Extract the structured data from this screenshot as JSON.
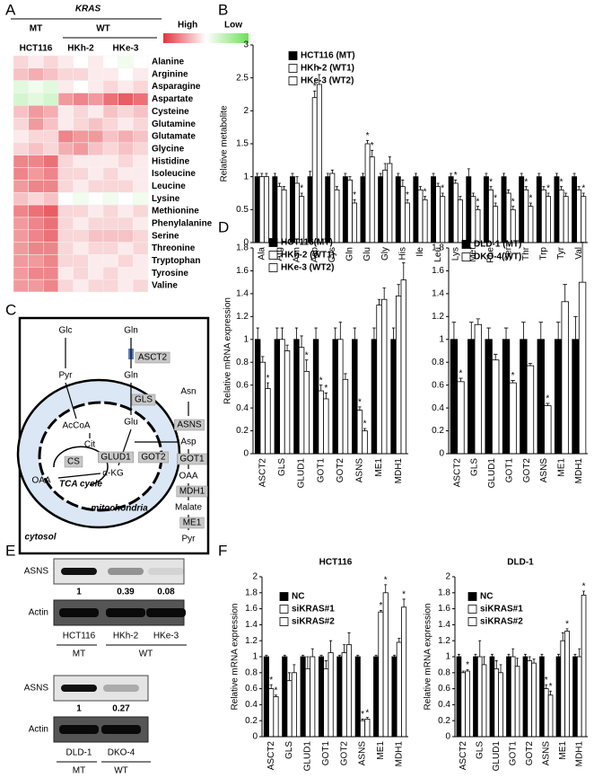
{
  "panel_labels": [
    "A",
    "B",
    "C",
    "D",
    "E",
    "F"
  ],
  "chart_data": [
    {
      "type": "heatmap",
      "title": "KRAS",
      "groups": [
        "MT",
        "WT"
      ],
      "columns": [
        "HCT116",
        "HKh-2",
        "HKe-3"
      ],
      "rows": [
        "Alanine",
        "Arginine",
        "Asparagine",
        "Aspartate",
        "Cysteine",
        "Glutamine",
        "Glutamate",
        "Glycine",
        "Histidine",
        "Isoleucine",
        "Leucine",
        "Lysine",
        "Methionine",
        "Phenylalanine",
        "Serine",
        "Threonine",
        "Tryptophan",
        "Tyrosine",
        "Valine"
      ],
      "values": [
        [
          0.2,
          0.1,
          0.2,
          0.1,
          0,
          0.1,
          0,
          -0.1,
          0
        ],
        [
          0.3,
          0.4,
          0.3,
          0.2,
          0.2,
          0.1,
          0.1,
          0,
          0.1
        ],
        [
          -0.2,
          -0.1,
          -0.2,
          0.1,
          0,
          0.1,
          0.2,
          0.1,
          0.2
        ],
        [
          -0.3,
          -0.2,
          -0.3,
          0.5,
          0.6,
          0.5,
          0.7,
          0.8,
          0.7
        ],
        [
          0.3,
          0.5,
          0.4,
          0.1,
          0.2,
          0.1,
          0.3,
          0.2,
          0.3
        ],
        [
          0.2,
          0.5,
          0.3,
          0.1,
          0.2,
          0.3,
          0.2,
          0.1,
          0.2
        ],
        [
          0.1,
          0.2,
          0.2,
          0.6,
          0.5,
          0.5,
          0.3,
          0.4,
          0.3
        ],
        [
          0.2,
          0.3,
          0.2,
          0.4,
          0.5,
          0.3,
          0.2,
          0.3,
          0.2
        ],
        [
          0.6,
          0.6,
          0.7,
          0.2,
          0.1,
          0.1,
          0.1,
          0.2,
          0.1
        ],
        [
          0.6,
          0.5,
          0.6,
          0.2,
          0.2,
          0.1,
          0.2,
          0.1,
          0.1
        ],
        [
          0.5,
          0.6,
          0.6,
          0.2,
          0.1,
          0.2,
          0.2,
          0.2,
          0.1
        ],
        [
          0.3,
          0.2,
          0.3,
          0,
          -0.1,
          0,
          -0.1,
          0,
          -0.1
        ],
        [
          0.6,
          0.7,
          0.8,
          0.2,
          0.2,
          0.1,
          0.2,
          0.1,
          0.2
        ],
        [
          0.5,
          0.6,
          0.7,
          0.2,
          0.1,
          0.2,
          0.2,
          0.2,
          0.1
        ],
        [
          0.5,
          0.6,
          0.7,
          0.2,
          0.2,
          0.3,
          0.3,
          0.3,
          0.2
        ],
        [
          0.5,
          0.6,
          0.6,
          0.2,
          0.1,
          0.2,
          0.2,
          0.1,
          0.2
        ],
        [
          0.5,
          0.5,
          0.6,
          0.2,
          0.2,
          0.1,
          0.1,
          0.2,
          0.1
        ],
        [
          0.5,
          0.6,
          0.6,
          0.1,
          0.2,
          0.1,
          0.2,
          0.1,
          0.1
        ],
        [
          0.5,
          0.5,
          0.6,
          0.2,
          0.1,
          0.2,
          0.2,
          0.1,
          0.2
        ]
      ],
      "legend": [
        "High",
        "Low"
      ],
      "high_color": "#e3343c",
      "low_color": "#6ee05a"
    },
    {
      "type": "bar",
      "ylabel": "Relative metabolite",
      "categories": [
        "Ala",
        "Arg",
        "Asn",
        "Asp",
        "Cys",
        "Gln",
        "Glu",
        "Gly",
        "His",
        "Ile",
        "Leu",
        "Lys",
        "Met",
        "Phe",
        "Ser",
        "Thr",
        "Trp",
        "Tyr",
        "Val"
      ],
      "ylim": [
        0,
        3
      ],
      "yticks": [
        0,
        0.5,
        1,
        1.5,
        2,
        2.5,
        3
      ],
      "series": [
        {
          "name": "HCT116      (MT)",
          "color": "#000000",
          "values": [
            1,
            1,
            1,
            1,
            1,
            1,
            1,
            1,
            1,
            1,
            1,
            1,
            1,
            1,
            1,
            1,
            1,
            1,
            1
          ],
          "errors": [
            0.05,
            0.05,
            0.05,
            0.08,
            0.05,
            0.05,
            0.05,
            0.05,
            0.05,
            0.05,
            0.05,
            0.05,
            0.12,
            0.05,
            0.05,
            0.05,
            0.05,
            0.05,
            0.05
          ],
          "significance": [
            null,
            null,
            null,
            null,
            null,
            null,
            null,
            null,
            null,
            null,
            null,
            null,
            null,
            null,
            null,
            null,
            null,
            null,
            null
          ]
        },
        {
          "name": "HKh-2       (WT1)",
          "color": "#ffffff",
          "values": [
            1,
            0.85,
            0.9,
            2.2,
            1.05,
            0.95,
            1.5,
            1.1,
            0.85,
            0.8,
            0.85,
            0.9,
            0.7,
            0.8,
            0.75,
            0.8,
            0.8,
            0.8,
            0.8
          ],
          "errors": [
            0.05,
            0.05,
            0.1,
            0.1,
            0.05,
            0.05,
            0.05,
            0.1,
            0.1,
            0.05,
            0.05,
            0.05,
            0.05,
            0.05,
            0.05,
            0.05,
            0.05,
            0.05,
            0.05
          ],
          "significance": [
            null,
            null,
            null,
            "*",
            null,
            null,
            "*",
            null,
            null,
            null,
            null,
            "*",
            null,
            "*",
            null,
            "*",
            null,
            "*",
            null
          ]
        },
        {
          "name": "HKe-3       (WT2)",
          "color": "#ffffff",
          "values": [
            1,
            0.8,
            0.7,
            2.4,
            0.8,
            0.6,
            1.3,
            1.2,
            0.6,
            0.65,
            0.7,
            0.65,
            0.5,
            0.55,
            0.5,
            0.55,
            0.7,
            0.7,
            0.7
          ],
          "errors": [
            0.05,
            0.05,
            0.05,
            0.15,
            0.05,
            0.05,
            0.1,
            0.1,
            0.05,
            0.05,
            0.05,
            0.05,
            0.05,
            0.05,
            0.05,
            0.05,
            0.05,
            0.05,
            0.05
          ],
          "significance": [
            null,
            null,
            "*",
            "*",
            null,
            "*",
            "*",
            null,
            "*",
            "*",
            "*",
            null,
            "*",
            "*",
            "*",
            "*",
            "*",
            null,
            "*"
          ]
        }
      ]
    },
    {
      "type": "bar",
      "ylabel": "Relative mRNA expression",
      "categories": [
        "ASCT2",
        "GLS",
        "GLUD1",
        "GOT1",
        "GOT2",
        "ASNS",
        "ME1",
        "MDH1"
      ],
      "ylim": [
        0,
        1.8
      ],
      "yticks": [
        0,
        0.2,
        0.4,
        0.6,
        0.8,
        1,
        1.2,
        1.4,
        1.6,
        1.8
      ],
      "series": [
        {
          "name": "HCT116(MT)",
          "color": "#000000",
          "values": [
            1,
            1,
            1,
            1,
            1,
            1,
            1,
            1
          ],
          "errors": [
            0.1,
            0.1,
            0.1,
            0.1,
            0.1,
            0.1,
            0.1,
            0.1
          ],
          "significance": [
            null,
            null,
            null,
            null,
            null,
            null,
            null,
            null
          ]
        },
        {
          "name": "HKh-2  (WT1)",
          "color": "#ffffff",
          "values": [
            0.8,
            1,
            0.93,
            0.55,
            1,
            0.38,
            1.3,
            1.38
          ],
          "errors": [
            0.05,
            0.1,
            0.1,
            0.05,
            0.15,
            0.03,
            0.05,
            0.1
          ],
          "significance": [
            null,
            null,
            null,
            "*",
            null,
            "*",
            null,
            null
          ]
        },
        {
          "name": "HKe-3  (WT2)",
          "color": "#ffffff",
          "values": [
            0.57,
            0.9,
            0.72,
            0.48,
            0.65,
            0.2,
            1.35,
            1.52
          ],
          "errors": [
            0.05,
            0.05,
            0.1,
            0.05,
            0.05,
            0.02,
            0.1,
            0.15
          ],
          "significance": [
            "*",
            null,
            "*",
            "*",
            null,
            "*",
            null,
            null
          ]
        }
      ]
    },
    {
      "type": "bar",
      "categories": [
        "ASCT2",
        "GLS",
        "GLUD1",
        "GOT1",
        "GOT2",
        "ASNS",
        "ME1",
        "MDH1"
      ],
      "ylim": [
        0,
        1.8
      ],
      "yticks": [
        0,
        0.2,
        0.4,
        0.6,
        0.8,
        1,
        1.2,
        1.4,
        1.6,
        1.8
      ],
      "series": [
        {
          "name": "DLD-1 (MT)",
          "color": "#000000",
          "values": [
            1,
            1,
            1,
            1,
            1,
            1,
            1,
            1
          ],
          "errors": [
            0.15,
            0.15,
            0.1,
            0.1,
            0.15,
            0.15,
            0.15,
            0.2
          ],
          "significance": [
            null,
            null,
            null,
            null,
            null,
            null,
            null,
            null
          ]
        },
        {
          "name": "DKO-4(WT)",
          "color": "#ffffff",
          "values": [
            0.63,
            1.13,
            0.82,
            0.62,
            0.77,
            0.42,
            1.33,
            1.5
          ],
          "errors": [
            0.03,
            0.05,
            0.05,
            0.02,
            0.02,
            0.02,
            0.15,
            0.35
          ],
          "significance": [
            "*",
            null,
            null,
            "*",
            null,
            "*",
            null,
            null
          ]
        }
      ]
    },
    {
      "type": "bar",
      "title": "HCT116",
      "ylabel": "Relative mRNA expression",
      "categories": [
        "ASCT2",
        "GLS",
        "GLUD1",
        "GOT1",
        "GOT2",
        "ASNS",
        "ME1",
        "MDH1"
      ],
      "ylim": [
        0,
        2
      ],
      "yticks": [
        0,
        0.2,
        0.4,
        0.6,
        0.8,
        1,
        1.2,
        1.4,
        1.6,
        1.8,
        2
      ],
      "series": [
        {
          "name": "NC",
          "color": "#000000",
          "values": [
            1,
            1,
            1,
            1,
            1,
            1,
            1,
            1
          ],
          "errors": [
            0.02,
            0.02,
            0.02,
            0.02,
            0.02,
            0.02,
            0.02,
            0.02
          ],
          "significance": [
            null,
            null,
            null,
            null,
            null,
            null,
            null,
            null
          ]
        },
        {
          "name": "siKRAS#1",
          "color": "#ffffff",
          "values": [
            0.6,
            0.7,
            0.85,
            0.85,
            1.05,
            0.2,
            1.56,
            1.18
          ],
          "errors": [
            0.05,
            0.1,
            0.15,
            0.1,
            0.1,
            0.02,
            0.02,
            0.05
          ],
          "significance": [
            "*",
            null,
            null,
            null,
            null,
            "*",
            "*",
            null
          ]
        },
        {
          "name": "siKRAS#2",
          "color": "#ffffff",
          "values": [
            0.5,
            0.8,
            1,
            1.05,
            1.15,
            0.22,
            1.8,
            1.62
          ],
          "errors": [
            0.02,
            0.1,
            0.1,
            0.15,
            0.15,
            0.02,
            0.1,
            0.1
          ],
          "significance": [
            "*",
            null,
            null,
            null,
            null,
            "*",
            "*",
            "*"
          ]
        }
      ]
    },
    {
      "type": "bar",
      "title": "DLD-1",
      "ylabel": "Relative mRNA expression",
      "categories": [
        "ASCT2",
        "GLS",
        "GLUD1",
        "GOT1",
        "GOT2",
        "ASNS",
        "ME1",
        "MDH1"
      ],
      "ylim": [
        0,
        2
      ],
      "yticks": [
        0,
        0.2,
        0.4,
        0.6,
        0.8,
        1,
        1.2,
        1.4,
        1.6,
        1.8,
        2
      ],
      "series": [
        {
          "name": "NC",
          "color": "#000000",
          "values": [
            1,
            1,
            1,
            1,
            1,
            1,
            1,
            1
          ],
          "errors": [
            0.03,
            0.03,
            0.03,
            0.03,
            0.03,
            0.03,
            0.03,
            0.03
          ],
          "significance": [
            null,
            null,
            null,
            null,
            null,
            null,
            null,
            null
          ]
        },
        {
          "name": "siKRAS#1",
          "color": "#ffffff",
          "values": [
            0.8,
            1,
            0.85,
            1,
            0.95,
            0.6,
            1.2,
            1
          ],
          "errors": [
            0.02,
            0.2,
            0.1,
            0.1,
            0.05,
            0.05,
            0.1,
            0.1
          ],
          "significance": [
            null,
            null,
            null,
            null,
            null,
            "*",
            null,
            null
          ]
        },
        {
          "name": "siKRAS#2",
          "color": "#ffffff",
          "values": [
            0.82,
            0.9,
            0.8,
            0.88,
            0.92,
            0.52,
            1.32,
            1.77
          ],
          "errors": [
            0.02,
            0.1,
            0.1,
            0.1,
            0.05,
            0.05,
            0.03,
            0.05
          ],
          "significance": [
            "*",
            null,
            null,
            null,
            null,
            "*",
            "*",
            "*"
          ]
        }
      ]
    }
  ],
  "diagram": {
    "labels": [
      "Glc",
      "Gln",
      "ASCT2",
      "Pyr",
      "Gln",
      "GLS",
      "Glu",
      "AcCoA",
      "Cit",
      "CS",
      "GLUD1",
      "GOT2",
      "α-KG",
      "OAA",
      "TCA cycle",
      "mitochondria",
      "Asn",
      "ASNS",
      "Asp",
      "GOT1",
      "OAA",
      "MDH1",
      "Malate",
      "ME1",
      "Pyr",
      "cytosol"
    ]
  },
  "blot": {
    "groups": [
      {
        "target": "ASNS",
        "control": "Actin",
        "quantification": [
          1,
          0.39,
          0.08
        ],
        "cell_lines": [
          "HCT116",
          "HKh-2",
          "HKe-3"
        ],
        "genotypes": [
          "MT",
          "WT"
        ]
      },
      {
        "target": "ASNS",
        "control": "Actin",
        "quantification": [
          1,
          0.27
        ],
        "cell_lines": [
          "DLD-1",
          "DKO-4"
        ],
        "genotypes": [
          "MT",
          "WT"
        ]
      }
    ]
  }
}
